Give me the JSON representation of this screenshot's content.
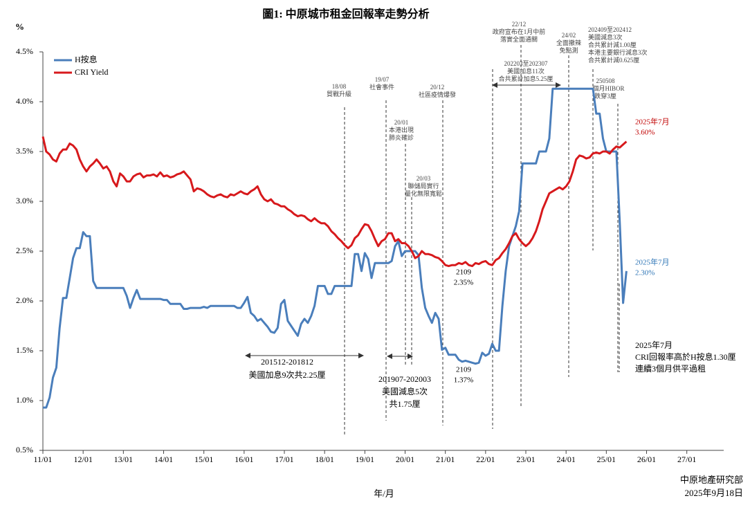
{
  "chart_data": {
    "type": "line",
    "title": "圖1: 中原城市租金回報率走勢分析",
    "y_unit": "%",
    "x_label": "年/月",
    "source": [
      "中原地產研究部",
      "2025年9月18日"
    ],
    "x": [
      0,
      1,
      2,
      3,
      4,
      5,
      6,
      7,
      8,
      9,
      10,
      11,
      12,
      13,
      14,
      15,
      16,
      17,
      18,
      19,
      20,
      21,
      22,
      23,
      24,
      25,
      26,
      27,
      28,
      29,
      30,
      31,
      32,
      33,
      34,
      35,
      36,
      37,
      38,
      39,
      40,
      41,
      42,
      43,
      44,
      45,
      46,
      47,
      48,
      49,
      50,
      51,
      52,
      53,
      54,
      55,
      56,
      57,
      58,
      59,
      60,
      61,
      62,
      63,
      64,
      65,
      66,
      67,
      68,
      69,
      70,
      71,
      72,
      73,
      74,
      75,
      76,
      77,
      78,
      79,
      80,
      81,
      82,
      83,
      84,
      85,
      86,
      87,
      88,
      89,
      90,
      91,
      92,
      93,
      94,
      95,
      96,
      97,
      98,
      99,
      100,
      101,
      102,
      103,
      104,
      105,
      106,
      107,
      108,
      109,
      110,
      111,
      112,
      113,
      114,
      115,
      116,
      117,
      118,
      119,
      120,
      121,
      122,
      123,
      124,
      125,
      126,
      127,
      128,
      129,
      130,
      131,
      132,
      133,
      134,
      135,
      136,
      137,
      138,
      139,
      140,
      141,
      142,
      143,
      144,
      145,
      146,
      147,
      148,
      149,
      150,
      151,
      152,
      153,
      154,
      155,
      156,
      157,
      158,
      159,
      160,
      161,
      162,
      163,
      164,
      165,
      166,
      167,
      168,
      169,
      170,
      171,
      172,
      173,
      174
    ],
    "xlim": [
      0,
      203
    ],
    "xticks": [
      {
        "value": 0,
        "label": "11/01"
      },
      {
        "value": 12,
        "label": "12/01"
      },
      {
        "value": 24,
        "label": "13/01"
      },
      {
        "value": 36,
        "label": "14/01"
      },
      {
        "value": 48,
        "label": "15/01"
      },
      {
        "value": 60,
        "label": "16/01"
      },
      {
        "value": 72,
        "label": "17/01"
      },
      {
        "value": 84,
        "label": "18/01"
      },
      {
        "value": 96,
        "label": "19/01"
      },
      {
        "value": 108,
        "label": "20/01"
      },
      {
        "value": 120,
        "label": "21/01"
      },
      {
        "value": 132,
        "label": "22/01"
      },
      {
        "value": 144,
        "label": "23/01"
      },
      {
        "value": 156,
        "label": "24/01"
      },
      {
        "value": 168,
        "label": "25/01"
      },
      {
        "value": 180,
        "label": "26/01"
      },
      {
        "value": 192,
        "label": "27/01"
      }
    ],
    "ylim": [
      0.5,
      4.5
    ],
    "yticks": [
      {
        "value": 0.5,
        "label": "0.5%"
      },
      {
        "value": 1,
        "label": "1.0%"
      },
      {
        "value": 1.5,
        "label": "1.5%"
      },
      {
        "value": 2,
        "label": "2.0%"
      },
      {
        "value": 2.5,
        "label": "2.5%"
      },
      {
        "value": 3,
        "label": "3.0%"
      },
      {
        "value": 3.5,
        "label": "3.5%"
      },
      {
        "value": 4,
        "label": "4.0%"
      },
      {
        "value": 4.5,
        "label": "4.5%"
      }
    ],
    "legend": "top-left",
    "series": [
      {
        "name": "H按息",
        "color": "#4a7ebb",
        "values": [
          0.93,
          0.93,
          1.03,
          1.23,
          1.33,
          1.73,
          2.03,
          2.03,
          2.23,
          2.43,
          2.53,
          2.53,
          2.69,
          2.65,
          2.65,
          2.2,
          2.13,
          2.13,
          2.13,
          2.13,
          2.13,
          2.13,
          2.13,
          2.13,
          2.13,
          2.05,
          1.93,
          2.03,
          2.11,
          2.02,
          2.02,
          2.02,
          2.02,
          2.02,
          2.02,
          2.02,
          2.01,
          2.01,
          1.97,
          1.97,
          1.97,
          1.97,
          1.92,
          1.92,
          1.93,
          1.93,
          1.93,
          1.93,
          1.94,
          1.93,
          1.95,
          1.95,
          1.95,
          1.95,
          1.95,
          1.95,
          1.95,
          1.95,
          1.93,
          1.93,
          1.98,
          2.04,
          1.88,
          1.85,
          1.8,
          1.82,
          1.78,
          1.74,
          1.69,
          1.68,
          1.73,
          1.97,
          2.01,
          1.8,
          1.75,
          1.7,
          1.65,
          1.77,
          1.82,
          1.78,
          1.85,
          1.95,
          2.15,
          2.15,
          2.15,
          2.07,
          2.07,
          2.15,
          2.15,
          2.15,
          2.15,
          2.15,
          2.15,
          2.47,
          2.47,
          2.3,
          2.48,
          2.42,
          2.23,
          2.38,
          2.38,
          2.38,
          2.38,
          2.38,
          2.4,
          2.55,
          2.6,
          2.45,
          2.5,
          2.5,
          2.5,
          2.5,
          2.46,
          2.13,
          1.93,
          1.85,
          1.78,
          1.88,
          1.82,
          1.51,
          1.53,
          1.46,
          1.46,
          1.46,
          1.41,
          1.39,
          1.4,
          1.39,
          1.38,
          1.37,
          1.38,
          1.48,
          1.45,
          1.47,
          1.57,
          1.5,
          1.5,
          1.95,
          2.3,
          2.55,
          2.65,
          2.75,
          2.9,
          3.38,
          3.38,
          3.38,
          3.38,
          3.38,
          3.5,
          3.5,
          3.5,
          3.63,
          4.13,
          4.13,
          4.13,
          4.13,
          4.13,
          4.13,
          4.13,
          4.13,
          4.13,
          4.13,
          4.13,
          4.13,
          4.13,
          3.88,
          3.88,
          3.63,
          3.5,
          3.5,
          3.5,
          3.5,
          2.8,
          1.98,
          2.3
        ]
      },
      {
        "name": "CRI Yield",
        "color": "#d7191c",
        "values": [
          3.65,
          3.5,
          3.47,
          3.42,
          3.4,
          3.48,
          3.52,
          3.52,
          3.58,
          3.56,
          3.52,
          3.42,
          3.35,
          3.3,
          3.35,
          3.38,
          3.42,
          3.38,
          3.33,
          3.35,
          3.3,
          3.2,
          3.15,
          3.28,
          3.25,
          3.2,
          3.2,
          3.25,
          3.27,
          3.28,
          3.24,
          3.26,
          3.26,
          3.27,
          3.25,
          3.29,
          3.25,
          3.26,
          3.24,
          3.25,
          3.27,
          3.28,
          3.3,
          3.26,
          3.22,
          3.1,
          3.13,
          3.12,
          3.1,
          3.07,
          3.05,
          3.04,
          3.06,
          3.07,
          3.05,
          3.04,
          3.07,
          3.06,
          3.08,
          3.1,
          3.08,
          3.07,
          3.1,
          3.12,
          3.15,
          3.07,
          3.02,
          3.0,
          3.02,
          2.98,
          2.97,
          2.95,
          2.95,
          2.92,
          2.9,
          2.87,
          2.85,
          2.86,
          2.85,
          2.82,
          2.8,
          2.83,
          2.8,
          2.78,
          2.78,
          2.75,
          2.7,
          2.67,
          2.63,
          2.6,
          2.56,
          2.53,
          2.56,
          2.63,
          2.66,
          2.72,
          2.77,
          2.76,
          2.7,
          2.62,
          2.55,
          2.6,
          2.62,
          2.68,
          2.68,
          2.6,
          2.62,
          2.58,
          2.58,
          2.55,
          2.5,
          2.43,
          2.45,
          2.5,
          2.47,
          2.47,
          2.46,
          2.44,
          2.43,
          2.4,
          2.36,
          2.35,
          2.36,
          2.36,
          2.38,
          2.37,
          2.39,
          2.36,
          2.35,
          2.38,
          2.37,
          2.39,
          2.4,
          2.37,
          2.36,
          2.41,
          2.43,
          2.48,
          2.52,
          2.58,
          2.65,
          2.68,
          2.62,
          2.58,
          2.55,
          2.58,
          2.63,
          2.7,
          2.8,
          2.92,
          3.0,
          3.08,
          3.1,
          3.12,
          3.14,
          3.12,
          3.15,
          3.2,
          3.3,
          3.42,
          3.46,
          3.45,
          3.43,
          3.44,
          3.48,
          3.49,
          3.48,
          3.5,
          3.5,
          3.48,
          3.52,
          3.55,
          3.54,
          3.57,
          3.6
        ]
      }
    ],
    "annotations": [
      {
        "lines": [
          "18/08",
          "貿戰升級"
        ]
      },
      {
        "lines": [
          "19/07",
          "社會事件"
        ]
      },
      {
        "lines": [
          "20/01",
          "本港出現",
          "肺炎確診"
        ]
      },
      {
        "lines": [
          "20/03",
          "聯儲局實行",
          "量化無限寬鬆"
        ]
      },
      {
        "lines": [
          "20/12",
          "社區疫情爆發"
        ]
      },
      {
        "lines": [
          "22/12",
          "政府宣布在1月中前",
          "落實全面通關"
        ]
      },
      {
        "lines": [
          "202203至202307",
          "美國加息11次",
          "合共累計加息5.25厘"
        ]
      },
      {
        "lines": [
          "24/02",
          "全面撤辣",
          "免點測"
        ]
      },
      {
        "lines": [
          "202409至202412",
          "美國減息3次",
          "合共累計減1.00厘",
          "本港主要銀行減息3次",
          "合共累計減0.625厘"
        ]
      },
      {
        "lines": [
          "250508",
          "一個月HIBOR",
          "跌穿3厘"
        ]
      },
      {
        "lines": [
          "201512-201812",
          "美國加息9次共2.25厘"
        ]
      },
      {
        "lines": [
          "201907-202003",
          "美國減息5次",
          "共1.75厘"
        ]
      },
      {
        "lines": [
          "2109",
          "2.35%"
        ]
      },
      {
        "lines": [
          "2109",
          "1.37%"
        ]
      },
      {
        "lines": [
          "2025年7月",
          "3.60%"
        ],
        "color": "#c00000"
      },
      {
        "lines": [
          "2025年7月",
          "2.30%"
        ],
        "color": "#2e75b6"
      },
      {
        "lines": [
          "2025年7月",
          "CRI回報率高於H按息1.30厘",
          "連續3個月供平過租"
        ]
      }
    ]
  }
}
